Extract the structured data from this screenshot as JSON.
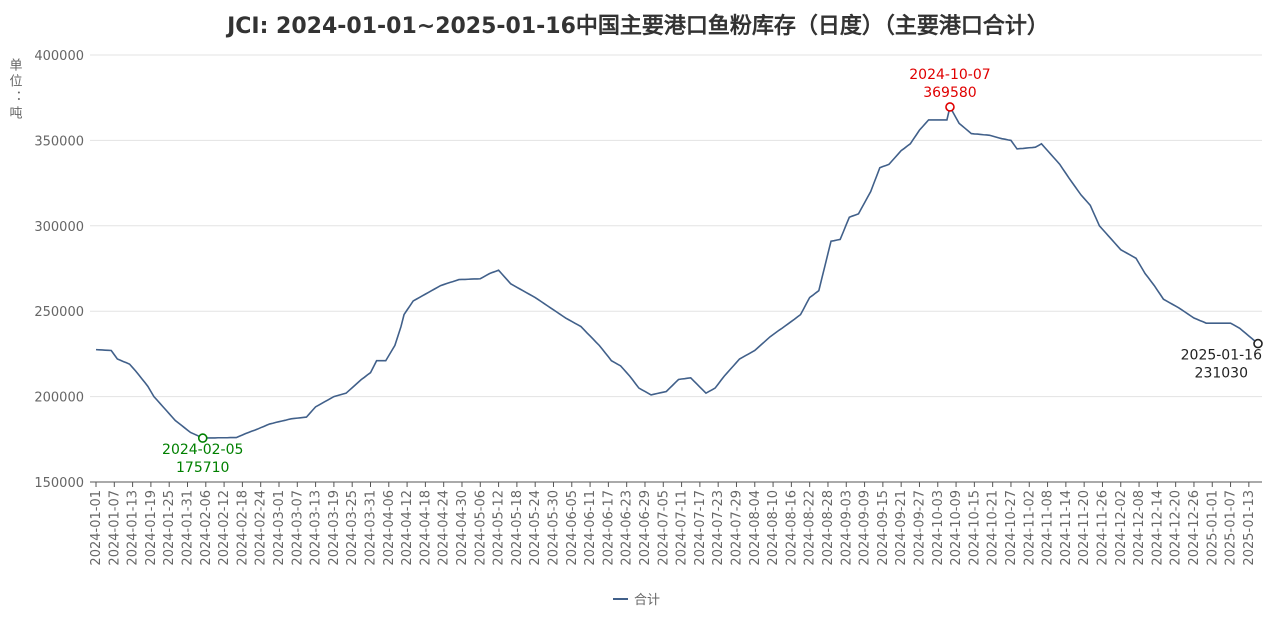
{
  "chart_data": {
    "type": "line",
    "title": "JCI: 2024-01-01~2025-01-16中国主要港口鱼粉库存（日度）（主要港口合计）",
    "y_label": "单位：吨",
    "categories": [
      "2024-01-01",
      null,
      null,
      null,
      null,
      null,
      "2024-01-07",
      null,
      null,
      null,
      null,
      null,
      "2024-01-13",
      null,
      null,
      null,
      null,
      null,
      "2024-01-19",
      null,
      null,
      null,
      null,
      null,
      "2024-01-25",
      null,
      null,
      null,
      null,
      null,
      "2024-01-31",
      null,
      null,
      null,
      null,
      null,
      "2024-02-06",
      null,
      null,
      null,
      null,
      null,
      "2024-02-12",
      null,
      null,
      null,
      null,
      null,
      "2024-02-18",
      null,
      null,
      null,
      null,
      null,
      "2024-02-24",
      null,
      null,
      null,
      null,
      null,
      "2024-03-01",
      null,
      null,
      null,
      null,
      null,
      "2024-03-07",
      null,
      null,
      null,
      null,
      null,
      "2024-03-13",
      null,
      null,
      null,
      null,
      null,
      "2024-03-19",
      null,
      null,
      null,
      null,
      null,
      "2024-03-25",
      null,
      null,
      null,
      null,
      null,
      "2024-03-31",
      null,
      null,
      null,
      null,
      null,
      "2024-04-06",
      null,
      null,
      null,
      null,
      null,
      "2024-04-12",
      null,
      null,
      null,
      null,
      null,
      "2024-04-18",
      null,
      null,
      null,
      null,
      null,
      "2024-04-24",
      null,
      null,
      null,
      null,
      null,
      "2024-04-30",
      null,
      null,
      null,
      null,
      null,
      "2024-05-06",
      null,
      null,
      null,
      null,
      null,
      "2024-05-12",
      null,
      null,
      null,
      null,
      null,
      "2024-05-18",
      null,
      null,
      null,
      null,
      null,
      "2024-05-24",
      null,
      null,
      null,
      null,
      null,
      "2024-05-30",
      null,
      null,
      null,
      null,
      null,
      "2024-06-05",
      null,
      null,
      null,
      null,
      null,
      "2024-06-11",
      null,
      null,
      null,
      null,
      null,
      "2024-06-17",
      null,
      null,
      null,
      null,
      null,
      "2024-06-23",
      null,
      null,
      null,
      null,
      null,
      "2024-06-29",
      null,
      null,
      null,
      null,
      null,
      "2024-07-05",
      null,
      null,
      null,
      null,
      null,
      "2024-07-11",
      null,
      null,
      null,
      null,
      null,
      "2024-07-17",
      null,
      null,
      null,
      null,
      null,
      "2024-07-23",
      null,
      null,
      null,
      null,
      null,
      "2024-07-29",
      null,
      null,
      null,
      null,
      null,
      "2024-08-04",
      null,
      null,
      null,
      null,
      null,
      "2024-08-10",
      null,
      null,
      null,
      null,
      null,
      "2024-08-16",
      null,
      null,
      null,
      null,
      null,
      "2024-08-22",
      null,
      null,
      null,
      null,
      null,
      "2024-08-28",
      null,
      null,
      null,
      null,
      null,
      "2024-09-03",
      null,
      null,
      null,
      null,
      null,
      "2024-09-09",
      null,
      null,
      null,
      null,
      null,
      "2024-09-15",
      null,
      null,
      null,
      null,
      null,
      "2024-09-21",
      null,
      null,
      null,
      null,
      null,
      "2024-09-27",
      null,
      null,
      null,
      null,
      null,
      "2024-10-03",
      null,
      null,
      null,
      null,
      null,
      "2024-10-09",
      null,
      null,
      null,
      null,
      null,
      "2024-10-15",
      null,
      null,
      null,
      null,
      null,
      "2024-10-21",
      null,
      null,
      null,
      null,
      null,
      "2024-10-27",
      null,
      null,
      null,
      null,
      null,
      "2024-11-02",
      null,
      null,
      null,
      null,
      null,
      "2024-11-08",
      null,
      null,
      null,
      null,
      null,
      "2024-11-14",
      null,
      null,
      null,
      null,
      null,
      "2024-11-20",
      null,
      null,
      null,
      null,
      null,
      "2024-11-26",
      null,
      null,
      null,
      null,
      null,
      "2024-12-02",
      null,
      null,
      null,
      null,
      null,
      "2024-12-08",
      null,
      null,
      null,
      null,
      null,
      "2024-12-14",
      null,
      null,
      null,
      null,
      null,
      "2024-12-20",
      null,
      null,
      null,
      null,
      null,
      "2024-12-26",
      null,
      null,
      null,
      null,
      null,
      "2025-01-01",
      null,
      null,
      null,
      null,
      null,
      "2025-01-07",
      null,
      null,
      null,
      null,
      null,
      "2025-01-13",
      null,
      null,
      null
    ],
    "series": [
      {
        "name": "合计",
        "color": "#41608a",
        "values": [
          227500,
          227400,
          227300,
          227200,
          227100,
          227000,
          224500,
          222000,
          221300,
          220500,
          219800,
          219000,
          217000,
          215000,
          212800,
          210500,
          208300,
          206000,
          203000,
          200000,
          198000,
          196000,
          194000,
          192000,
          190000,
          188000,
          186000,
          184600,
          183200,
          181800,
          180400,
          179000,
          178200,
          177400,
          176600,
          175710,
          175800,
          175800,
          175800,
          175800,
          175900,
          175900,
          175900,
          175900,
          176000,
          176000,
          176000,
          176800,
          177500,
          178300,
          179000,
          179700,
          180300,
          181000,
          181800,
          182500,
          183300,
          184000,
          184400,
          184900,
          185300,
          185700,
          186100,
          186600,
          187000,
          187200,
          187400,
          187600,
          187800,
          188000,
          190000,
          192000,
          194000,
          195000,
          196000,
          197000,
          198000,
          199000,
          200000,
          200500,
          201000,
          201500,
          202000,
          203600,
          205200,
          206800,
          208400,
          210000,
          211300,
          212700,
          214000,
          217500,
          221000,
          221000,
          221000,
          221000,
          224000,
          227000,
          230000,
          235500,
          241000,
          248000,
          250700,
          253300,
          256000,
          257000,
          258000,
          259000,
          260000,
          261000,
          262000,
          263000,
          264000,
          265000,
          265600,
          266200,
          266800,
          267300,
          267900,
          268500,
          268600,
          268600,
          268700,
          268800,
          268900,
          268900,
          269000,
          270000,
          271000,
          272000,
          272700,
          273300,
          274000,
          272000,
          270000,
          268000,
          266000,
          265000,
          264000,
          263000,
          262000,
          261000,
          260000,
          259000,
          258000,
          256800,
          255600,
          254400,
          253200,
          252000,
          250800,
          249600,
          248400,
          247200,
          246000,
          245000,
          244000,
          243000,
          242000,
          241000,
          239200,
          237300,
          235500,
          233700,
          231800,
          230000,
          227800,
          225500,
          223300,
          221000,
          220000,
          219000,
          218000,
          216000,
          214000,
          212000,
          209700,
          207300,
          205000,
          204000,
          203000,
          202000,
          201000,
          201400,
          201800,
          202200,
          202600,
          203000,
          204800,
          206500,
          208300,
          210000,
          210300,
          210500,
          210800,
          211000,
          209200,
          207400,
          205600,
          203800,
          202000,
          203000,
          204000,
          205000,
          207300,
          209700,
          212000,
          214000,
          216000,
          218000,
          220000,
          222000,
          223000,
          224000,
          225000,
          226000,
          227000,
          228600,
          230200,
          231800,
          233400,
          235000,
          236300,
          237600,
          238900,
          240100,
          241400,
          242700,
          244000,
          245300,
          246700,
          248000,
          251300,
          254700,
          258000,
          259300,
          260700,
          262000,
          269300,
          276500,
          283800,
          291000,
          291300,
          291700,
          292000,
          296300,
          300700,
          305000,
          305700,
          306300,
          307000,
          310300,
          313500,
          316800,
          320000,
          324700,
          329300,
          334000,
          334700,
          335300,
          336000,
          338000,
          340000,
          342000,
          344000,
          345300,
          346700,
          348000,
          350700,
          353300,
          356000,
          358000,
          360000,
          362000,
          362000,
          362000,
          362000,
          362000,
          362000,
          362000,
          369580,
          366400,
          363200,
          360000,
          358500,
          357000,
          355500,
          354000,
          353800,
          353700,
          353500,
          353300,
          353200,
          353000,
          352500,
          352000,
          351500,
          351000,
          350700,
          350300,
          350000,
          347500,
          345000,
          345200,
          345300,
          345500,
          345700,
          345800,
          346000,
          347000,
          348000,
          346000,
          344000,
          342000,
          340000,
          338000,
          336000,
          333300,
          330700,
          328000,
          325500,
          323000,
          320500,
          318000,
          316000,
          314000,
          312000,
          308000,
          304000,
          300000,
          298000,
          296000,
          294000,
          292000,
          290000,
          288000,
          286000,
          285000,
          284000,
          283000,
          282000,
          281000,
          278000,
          275000,
          272000,
          269700,
          267300,
          265000,
          262300,
          259700,
          257000,
          256000,
          255000,
          254000,
          253000,
          252000,
          250800,
          249600,
          248400,
          247200,
          246000,
          245300,
          244500,
          243800,
          243000,
          243000,
          243000,
          243000,
          243000,
          243000,
          243000,
          243000,
          243000,
          242000,
          241000,
          240000,
          238500,
          237000,
          235500,
          234000,
          232500,
          231030
        ]
      }
    ],
    "ylim": [
      150000,
      400000
    ],
    "yticks": [
      150000,
      200000,
      250000,
      300000,
      350000,
      400000
    ],
    "grid": true,
    "legend": "bottom",
    "annotations": [
      {
        "label": "2024-02-05",
        "value": 175710,
        "color": "#008000"
      },
      {
        "label": "2024-10-07",
        "value": 369580,
        "color": "#e00000"
      },
      {
        "label": "2025-01-16",
        "value": 231030,
        "color": "#222222"
      }
    ]
  }
}
